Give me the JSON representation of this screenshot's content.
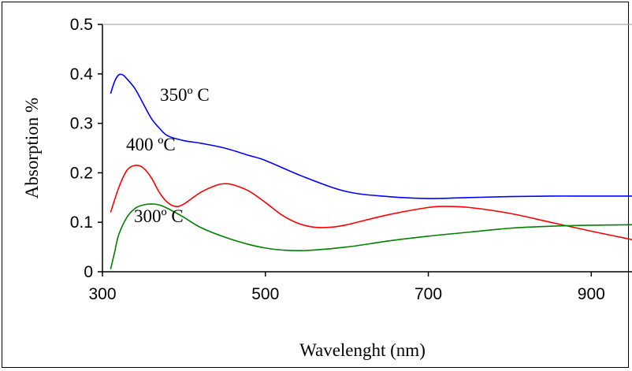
{
  "chart_data": {
    "type": "line",
    "title": "",
    "xlabel": "Wavelenght (nm)",
    "ylabel": "Absorption %",
    "xlim": [
      300,
      950
    ],
    "ylim": [
      0,
      0.5
    ],
    "x_ticks": [
      "300",
      "500",
      "700",
      "900"
    ],
    "x_tick_values": [
      300,
      500,
      700,
      900
    ],
    "y_ticks": [
      "0",
      "0.1",
      "0.2",
      "0.3",
      "0.4",
      "0.5"
    ],
    "y_tick_values": [
      0,
      0.1,
      0.2,
      0.3,
      0.4,
      0.5
    ],
    "grid": false,
    "legend": "none",
    "series": [
      {
        "name": "350º C",
        "color": "#0000ff",
        "x": [
          310,
          315,
          320,
          325,
          330,
          340,
          350,
          360,
          370,
          380,
          400,
          420,
          450,
          480,
          500,
          550,
          600,
          650,
          700,
          750,
          800,
          850,
          900,
          950
        ],
        "y": [
          0.36,
          0.385,
          0.398,
          0.398,
          0.39,
          0.37,
          0.34,
          0.31,
          0.29,
          0.275,
          0.265,
          0.26,
          0.25,
          0.235,
          0.225,
          0.19,
          0.162,
          0.152,
          0.148,
          0.15,
          0.152,
          0.153,
          0.153,
          0.153
        ]
      },
      {
        "name": "400 ºC",
        "color": "#ff0000",
        "x": [
          310,
          320,
          330,
          340,
          350,
          360,
          370,
          380,
          390,
          400,
          420,
          440,
          450,
          460,
          480,
          500,
          520,
          540,
          560,
          580,
          600,
          650,
          700,
          720,
          750,
          800,
          850,
          900,
          950
        ],
        "y": [
          0.12,
          0.17,
          0.205,
          0.215,
          0.21,
          0.19,
          0.16,
          0.14,
          0.132,
          0.137,
          0.16,
          0.175,
          0.178,
          0.176,
          0.163,
          0.14,
          0.115,
          0.098,
          0.09,
          0.09,
          0.095,
          0.115,
          0.13,
          0.132,
          0.13,
          0.118,
          0.1,
          0.082,
          0.065
        ]
      },
      {
        "name": "300º C",
        "color": "#008000",
        "x": [
          310,
          315,
          320,
          330,
          340,
          350,
          360,
          370,
          380,
          400,
          420,
          450,
          480,
          500,
          520,
          550,
          600,
          650,
          700,
          750,
          800,
          850,
          900,
          950
        ],
        "y": [
          0.005,
          0.04,
          0.075,
          0.11,
          0.128,
          0.135,
          0.137,
          0.135,
          0.128,
          0.11,
          0.09,
          0.07,
          0.055,
          0.048,
          0.044,
          0.043,
          0.05,
          0.062,
          0.072,
          0.08,
          0.088,
          0.092,
          0.094,
          0.095
        ]
      }
    ]
  },
  "labels": {
    "series_350": "350º C",
    "series_400": "400 ºC",
    "series_300": "300º C"
  }
}
